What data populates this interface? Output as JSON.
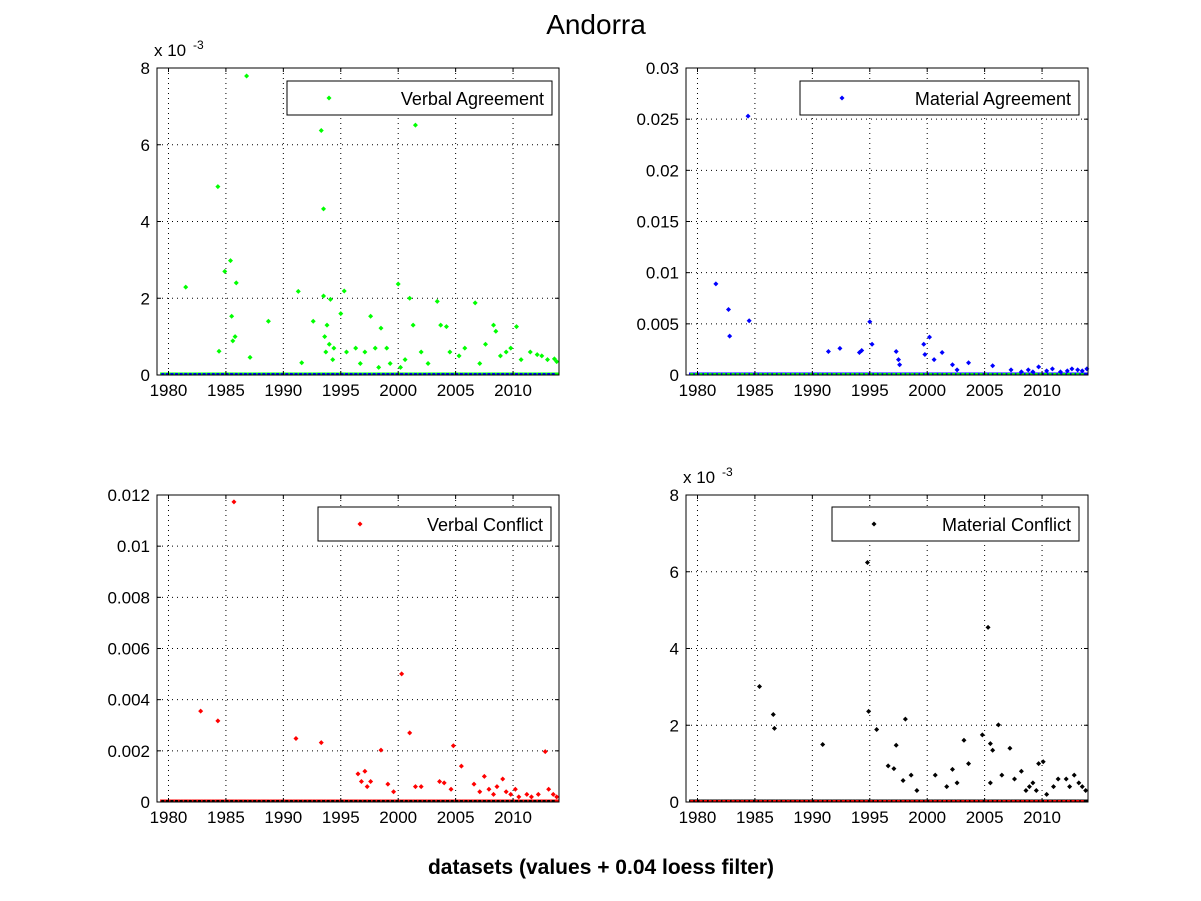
{
  "figure": {
    "title": "Andorra",
    "xlabel": "datasets (values + 0.04 loess filter)"
  },
  "chart_data": [
    {
      "type": "scatter",
      "xlim": [
        1979,
        2014
      ],
      "ylim": [
        0,
        0.008
      ],
      "xticks": [
        1980,
        1985,
        1990,
        1995,
        2000,
        2005,
        2010
      ],
      "yticks": [
        0,
        2,
        4,
        6,
        8
      ],
      "exponent_label": "x 10",
      "exponent": "-3",
      "grid": true,
      "legend": {
        "position": "top-right"
      },
      "series": [
        {
          "name": "Verbal Agreement",
          "color": "#00ff00",
          "points": [
            [
              1981.5,
              0.00229
            ],
            [
              1984.3,
              0.00491
            ],
            [
              1984.4,
              0.00062
            ],
            [
              1984.9,
              0.0027
            ],
            [
              1985.4,
              0.00298
            ],
            [
              1985.5,
              0.00153
            ],
            [
              1985.6,
              0.00089
            ],
            [
              1985.8,
              0.001
            ],
            [
              1985.9,
              0.0024
            ],
            [
              1986.8,
              0.00779
            ],
            [
              1987.1,
              0.00046
            ],
            [
              1988.7,
              0.0014
            ],
            [
              1991.3,
              0.00218
            ],
            [
              1991.6,
              0.00032
            ],
            [
              1992.6,
              0.0014
            ],
            [
              1993.3,
              0.00637
            ],
            [
              1993.5,
              0.00433
            ],
            [
              1993.5,
              0.00206
            ],
            [
              1993.6,
              0.001
            ],
            [
              1993.7,
              0.0006
            ],
            [
              1993.8,
              0.0013
            ],
            [
              1994.0,
              0.0008
            ],
            [
              1994.1,
              0.00197
            ],
            [
              1994.3,
              0.0004
            ],
            [
              1994.4,
              0.0007
            ],
            [
              1995.0,
              0.0016
            ],
            [
              1995.3,
              0.00219
            ],
            [
              1995.5,
              0.0006
            ],
            [
              1996.3,
              0.0007
            ],
            [
              1996.7,
              0.0003
            ],
            [
              1997.1,
              0.0006
            ],
            [
              1997.6,
              0.00153
            ],
            [
              1998.0,
              0.0007
            ],
            [
              1998.3,
              0.0002
            ],
            [
              1998.5,
              0.00122
            ],
            [
              1999.0,
              0.0007
            ],
            [
              1999.3,
              0.0003
            ],
            [
              2000.0,
              0.00237
            ],
            [
              2000.2,
              0.0002
            ],
            [
              2000.6,
              0.0004
            ],
            [
              2001.0,
              0.002
            ],
            [
              2001.3,
              0.0013
            ],
            [
              2001.5,
              0.00651
            ],
            [
              2002.0,
              0.0006
            ],
            [
              2002.6,
              0.0003
            ],
            [
              2003.4,
              0.00192
            ],
            [
              2003.7,
              0.0013
            ],
            [
              2004.2,
              0.00126
            ],
            [
              2004.5,
              0.0006
            ],
            [
              2005.3,
              0.0005
            ],
            [
              2005.8,
              0.0007
            ],
            [
              2006.7,
              0.00188
            ],
            [
              2007.1,
              0.0003
            ],
            [
              2007.6,
              0.0008
            ],
            [
              2008.3,
              0.0013
            ],
            [
              2008.5,
              0.00114
            ],
            [
              2008.9,
              0.0005
            ],
            [
              2009.4,
              0.0006
            ],
            [
              2009.8,
              0.0007
            ],
            [
              2010.3,
              0.00126
            ],
            [
              2010.7,
              0.0004
            ],
            [
              2011.5,
              0.0006
            ],
            [
              2012.1,
              0.00053
            ],
            [
              2012.5,
              0.0005
            ],
            [
              2013.0,
              0.0004
            ],
            [
              2013.6,
              0.00042
            ],
            [
              2013.8,
              0.00035
            ]
          ]
        },
        {
          "name": "",
          "color": "#0000ff",
          "points": []
        }
      ]
    },
    {
      "type": "scatter",
      "xlim": [
        1979,
        2014
      ],
      "ylim": [
        0,
        0.03
      ],
      "xticks": [
        1980,
        1985,
        1990,
        1995,
        2000,
        2005,
        2010
      ],
      "yticks": [
        0,
        0.005,
        0.01,
        0.015,
        0.02,
        0.025,
        0.03
      ],
      "ytick_labels": [
        "0",
        "0.005",
        "0.01",
        "0.015",
        "0.02",
        "0.025",
        "0.03"
      ],
      "grid": true,
      "legend": {
        "position": "top-right"
      },
      "series": [
        {
          "name": "Material Agreement",
          "color": "#0000ff",
          "points": [
            [
              1981.6,
              0.0089
            ],
            [
              1982.7,
              0.0064
            ],
            [
              1982.8,
              0.0038
            ],
            [
              1984.4,
              0.0253
            ],
            [
              1984.5,
              0.0053
            ],
            [
              1991.4,
              0.0023
            ],
            [
              1992.4,
              0.0026
            ],
            [
              1994.1,
              0.0022
            ],
            [
              1994.3,
              0.0024
            ],
            [
              1995.0,
              0.0052
            ],
            [
              1995.2,
              0.003
            ],
            [
              1997.3,
              0.0023
            ],
            [
              1997.5,
              0.0015
            ],
            [
              1997.6,
              0.001
            ],
            [
              1999.7,
              0.003
            ],
            [
              1999.8,
              0.002
            ],
            [
              2000.2,
              0.0037
            ],
            [
              2000.6,
              0.0015
            ],
            [
              2001.3,
              0.0022
            ],
            [
              2002.2,
              0.001
            ],
            [
              2002.6,
              0.0005
            ],
            [
              2003.6,
              0.0012
            ],
            [
              2005.7,
              0.0009
            ],
            [
              2007.3,
              0.0005
            ],
            [
              2008.2,
              0.0003
            ],
            [
              2008.8,
              0.0005
            ],
            [
              2009.2,
              0.0003
            ],
            [
              2009.7,
              0.0008
            ],
            [
              2010.4,
              0.0004
            ],
            [
              2010.9,
              0.0006
            ],
            [
              2011.6,
              0.0003
            ],
            [
              2012.2,
              0.0004
            ],
            [
              2012.6,
              0.0006
            ],
            [
              2013.1,
              0.0005
            ],
            [
              2013.5,
              0.0004
            ],
            [
              2013.9,
              0.0006
            ]
          ]
        },
        {
          "name": "",
          "color": "#00ff00",
          "points": []
        }
      ]
    },
    {
      "type": "scatter",
      "xlim": [
        1979,
        2014
      ],
      "ylim": [
        0,
        0.012
      ],
      "xticks": [
        1980,
        1985,
        1990,
        1995,
        2000,
        2005,
        2010
      ],
      "yticks": [
        0,
        0.002,
        0.004,
        0.006,
        0.008,
        0.01,
        0.012
      ],
      "ytick_labels": [
        "0",
        "0.002",
        "0.004",
        "0.006",
        "0.008",
        "0.01",
        "0.012"
      ],
      "grid": true,
      "legend": {
        "position": "top-right"
      },
      "series": [
        {
          "name": "Verbal Conflict",
          "color": "#ff0000",
          "points": [
            [
              1982.8,
              0.00355
            ],
            [
              1984.3,
              0.00317
            ],
            [
              1985.7,
              0.01173
            ],
            [
              1991.1,
              0.00248
            ],
            [
              1993.3,
              0.00232
            ],
            [
              1996.5,
              0.0011
            ],
            [
              1996.8,
              0.0008
            ],
            [
              1997.1,
              0.0012
            ],
            [
              1997.3,
              0.0006
            ],
            [
              1997.6,
              0.0008
            ],
            [
              1998.5,
              0.00203
            ],
            [
              1999.1,
              0.0007
            ],
            [
              1999.6,
              0.0004
            ],
            [
              2000.3,
              0.00501
            ],
            [
              2001.0,
              0.0027
            ],
            [
              2001.5,
              0.0006
            ],
            [
              2002.0,
              0.0006
            ],
            [
              2003.6,
              0.0008
            ],
            [
              2004.0,
              0.00075
            ],
            [
              2004.6,
              0.0005
            ],
            [
              2004.8,
              0.0022
            ],
            [
              2005.5,
              0.0014
            ],
            [
              2006.6,
              0.0007
            ],
            [
              2007.1,
              0.0004
            ],
            [
              2007.5,
              0.001
            ],
            [
              2007.9,
              0.0005
            ],
            [
              2008.3,
              0.0003
            ],
            [
              2008.6,
              0.0006
            ],
            [
              2009.1,
              0.0009
            ],
            [
              2009.4,
              0.0004
            ],
            [
              2009.8,
              0.0003
            ],
            [
              2010.2,
              0.0005
            ],
            [
              2010.5,
              0.0002
            ],
            [
              2011.2,
              0.0003
            ],
            [
              2011.6,
              0.0002
            ],
            [
              2012.2,
              0.0003
            ],
            [
              2012.8,
              0.00197
            ],
            [
              2013.1,
              0.0005
            ],
            [
              2013.5,
              0.0003
            ],
            [
              2013.8,
              0.0002
            ]
          ]
        },
        {
          "name": "",
          "color": "#000000",
          "points": []
        }
      ]
    },
    {
      "type": "scatter",
      "xlim": [
        1979,
        2014
      ],
      "ylim": [
        0,
        0.008
      ],
      "xticks": [
        1980,
        1985,
        1990,
        1995,
        2000,
        2005,
        2010
      ],
      "yticks": [
        0,
        2,
        4,
        6,
        8
      ],
      "exponent_label": "x 10",
      "exponent": "-3",
      "grid": true,
      "legend": {
        "position": "top-right"
      },
      "series": [
        {
          "name": "Material Conflict",
          "color": "#000000",
          "points": [
            [
              1985.4,
              0.00301
            ],
            [
              1986.6,
              0.00228
            ],
            [
              1986.7,
              0.00192
            ],
            [
              1990.9,
              0.0015
            ],
            [
              1994.8,
              0.00624
            ],
            [
              1994.9,
              0.00236
            ],
            [
              1995.6,
              0.00189
            ],
            [
              1996.6,
              0.00094
            ],
            [
              1997.1,
              0.00087
            ],
            [
              1997.3,
              0.00148
            ],
            [
              1997.9,
              0.00056
            ],
            [
              1998.1,
              0.00216
            ],
            [
              1998.6,
              0.0007
            ],
            [
              1999.1,
              0.0003
            ],
            [
              2000.7,
              0.0007
            ],
            [
              2001.7,
              0.0004
            ],
            [
              2002.2,
              0.00085
            ],
            [
              2002.6,
              0.0005
            ],
            [
              2003.2,
              0.00161
            ],
            [
              2003.6,
              0.001
            ],
            [
              2004.8,
              0.00175
            ],
            [
              2005.3,
              0.00455
            ],
            [
              2005.5,
              0.00152
            ],
            [
              2005.7,
              0.00135
            ],
            [
              2005.5,
              0.0005
            ],
            [
              2006.2,
              0.00201
            ],
            [
              2006.5,
              0.0007
            ],
            [
              2007.2,
              0.0014
            ],
            [
              2007.6,
              0.0006
            ],
            [
              2008.2,
              0.0008
            ],
            [
              2008.6,
              0.0003
            ],
            [
              2008.9,
              0.0004
            ],
            [
              2009.2,
              0.0005
            ],
            [
              2009.5,
              0.0003
            ],
            [
              2009.7,
              0.001
            ],
            [
              2010.1,
              0.00105
            ],
            [
              2010.4,
              0.0002
            ],
            [
              2011.0,
              0.0004
            ],
            [
              2011.4,
              0.0006
            ],
            [
              2012.1,
              0.0006
            ],
            [
              2012.4,
              0.0004
            ],
            [
              2012.8,
              0.0007
            ],
            [
              2013.2,
              0.0005
            ],
            [
              2013.5,
              0.0004
            ],
            [
              2013.8,
              0.0003
            ]
          ]
        },
        {
          "name": "",
          "color": "#ff0000",
          "points": []
        }
      ]
    }
  ]
}
